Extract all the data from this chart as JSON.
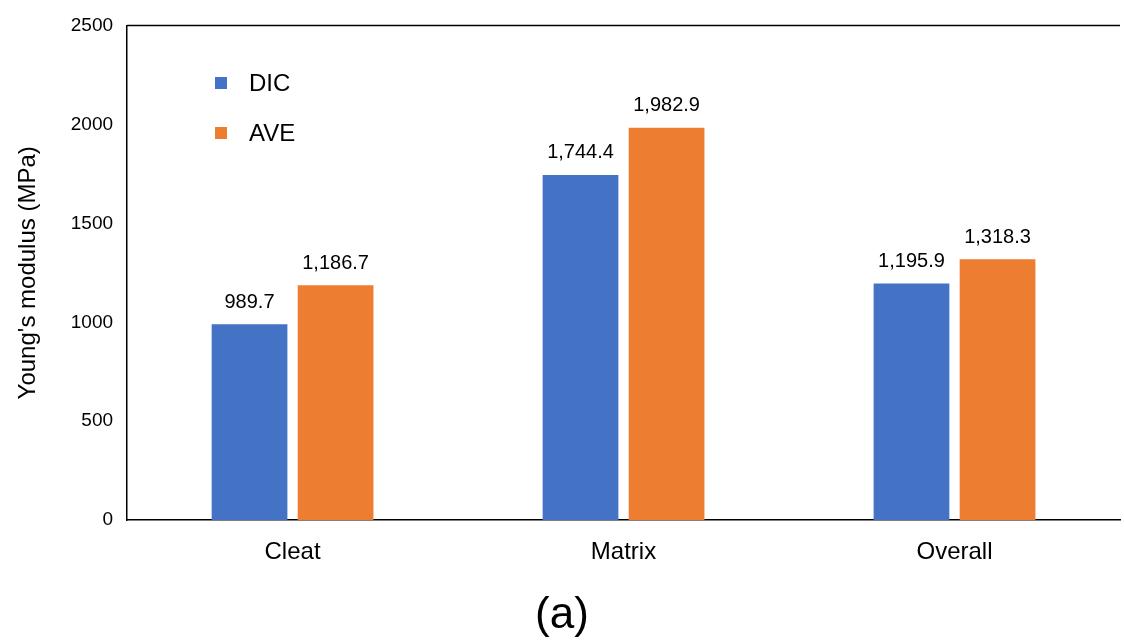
{
  "chart_data": {
    "type": "bar",
    "ylabel": "Young's modulus (MPa)",
    "categories": [
      "Cleat",
      "Matrix",
      "Overall"
    ],
    "series": [
      {
        "name": "DIC",
        "color": "#4472c4",
        "values": [
          989.7,
          1744.4,
          1195.9
        ],
        "value_labels": [
          "989.7",
          "1,744.4",
          "1,195.9"
        ]
      },
      {
        "name": "AVE",
        "color": "#ed7d31",
        "values": [
          1186.7,
          1982.9,
          1318.3
        ],
        "value_labels": [
          "1,186.7",
          "1,982.9",
          "1,318.3"
        ]
      }
    ],
    "ylim": [
      0,
      2500
    ],
    "yticks": [
      0,
      500,
      1000,
      1500,
      2000,
      2500
    ],
    "grid": false,
    "legend": "top left",
    "annotations": [
      "(a)"
    ]
  }
}
